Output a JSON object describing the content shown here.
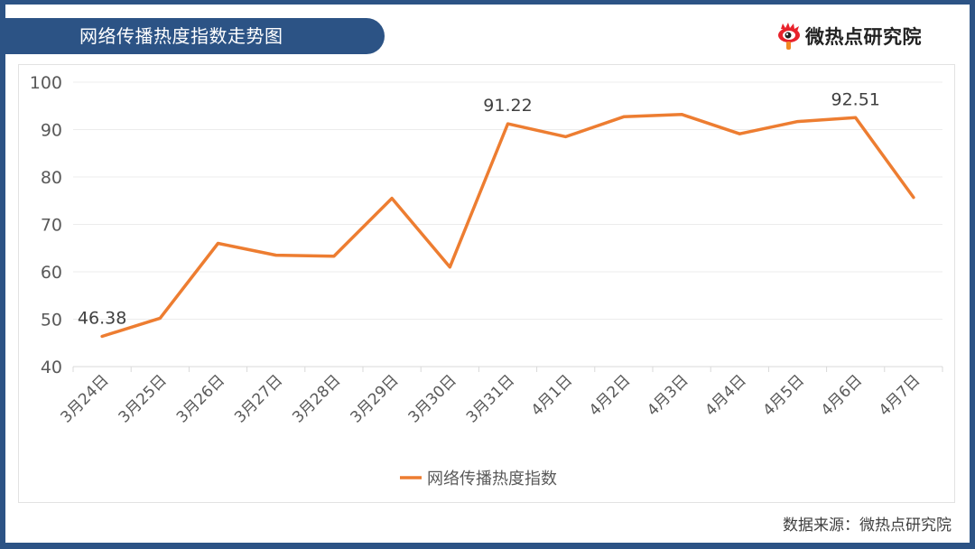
{
  "header": {
    "title": "网络传播热度指数走势图",
    "brand_name": "微热点研究院",
    "brand_icon": "weibo-eye-logo-icon"
  },
  "footer": {
    "source": "数据来源：微热点研究院"
  },
  "colors": {
    "frame": "#2c5385",
    "line": "#ed7d31",
    "grid": "#ececec",
    "text": "#595959"
  },
  "chart_data": {
    "type": "line",
    "title": "网络传播热度指数走势图",
    "xlabel": "",
    "ylabel": "",
    "ylim": [
      40,
      100
    ],
    "yticks": [
      40,
      50,
      60,
      70,
      80,
      90,
      100
    ],
    "grid": true,
    "legend_position": "bottom",
    "categories": [
      "3月24日",
      "3月25日",
      "3月26日",
      "3月27日",
      "3月28日",
      "3月29日",
      "3月30日",
      "3月31日",
      "4月1日",
      "4月2日",
      "4月3日",
      "4月4日",
      "4月5日",
      "4月6日",
      "4月7日"
    ],
    "series": [
      {
        "name": "网络传播热度指数",
        "color": "#ed7d31",
        "values": [
          46.38,
          50.2,
          66.0,
          63.5,
          63.3,
          75.5,
          61.0,
          91.22,
          88.5,
          92.7,
          93.2,
          89.1,
          91.7,
          92.51,
          75.7
        ]
      }
    ],
    "annotations": [
      {
        "category": "3月24日",
        "label": "46.38"
      },
      {
        "category": "3月31日",
        "label": "91.22"
      },
      {
        "category": "4月6日",
        "label": "92.51"
      }
    ]
  }
}
